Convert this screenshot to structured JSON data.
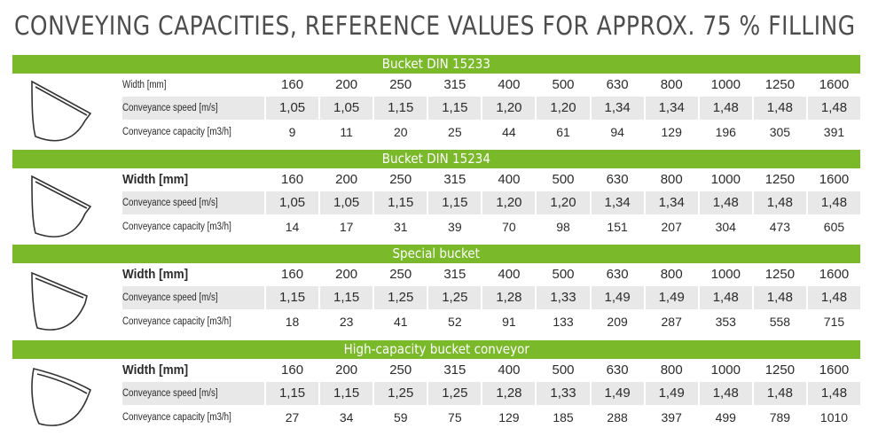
{
  "title": "CONVEYING CAPACITIES, REFERENCE VALUES FOR APPROX. 75 % FILLING",
  "widths": [
    "160",
    "200",
    "250",
    "315",
    "400",
    "500",
    "630",
    "800",
    "1000",
    "1250",
    "1600"
  ],
  "sections": [
    {
      "name": "Bucket DIN 15233",
      "icon": "bucket-din-15233-icon",
      "width_label": "Width [mm]",
      "speed_label": "Conveyance speed [m/s]",
      "capacity_label": "Conveyance capacity [m3/h]",
      "speed": [
        "1,05",
        "1,05",
        "1,15",
        "1,15",
        "1,20",
        "1,20",
        "1,34",
        "1,34",
        "1,48",
        "1,48",
        "1,48"
      ],
      "capacity": [
        "9",
        "11",
        "20",
        "25",
        "44",
        "61",
        "94",
        "129",
        "196",
        "305",
        "391"
      ]
    },
    {
      "name": "Bucket DIN 15234",
      "icon": "bucket-din-15234-icon",
      "width_label": "Width [mm]",
      "speed_label": "Conveyance speed [m/s]",
      "capacity_label": "Conveyance capacity [m3/h]",
      "speed": [
        "1,05",
        "1,05",
        "1,15",
        "1,15",
        "1,20",
        "1,20",
        "1,34",
        "1,34",
        "1,48",
        "1,48",
        "1,48"
      ],
      "capacity": [
        "14",
        "17",
        "31",
        "39",
        "70",
        "98",
        "151",
        "207",
        "304",
        "473",
        "605"
      ]
    },
    {
      "name": "Special bucket",
      "icon": "special-bucket-icon",
      "width_label": "Width [mm]",
      "speed_label": "Conveyance speed [m/s]",
      "capacity_label": "Conveyance capacity [m3/h]",
      "speed": [
        "1,15",
        "1,15",
        "1,25",
        "1,25",
        "1,28",
        "1,33",
        "1,49",
        "1,49",
        "1,48",
        "1,48",
        "1,48"
      ],
      "capacity": [
        "18",
        "23",
        "41",
        "52",
        "91",
        "133",
        "209",
        "287",
        "353",
        "558",
        "715"
      ]
    },
    {
      "name": "High-capacity bucket conveyor",
      "icon": "high-capacity-bucket-icon",
      "width_label": "Width [mm]",
      "speed_label": "Conveyance speed [m/s]",
      "capacity_label": "Conveyance capacity [m3/h]",
      "speed": [
        "1,15",
        "1,15",
        "1,25",
        "1,25",
        "1,28",
        "1,33",
        "1,49",
        "1,49",
        "1,48",
        "1,48",
        "1,48"
      ],
      "capacity": [
        "27",
        "34",
        "59",
        "75",
        "129",
        "185",
        "288",
        "397",
        "499",
        "789",
        "1010"
      ]
    }
  ]
}
